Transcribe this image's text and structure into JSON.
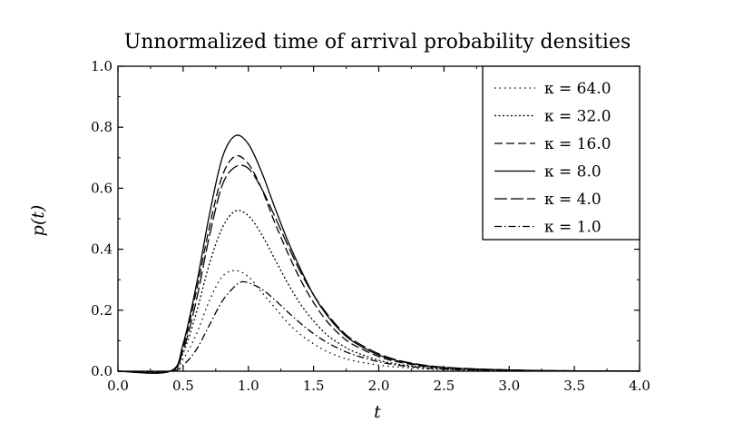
{
  "chart_data": {
    "type": "line",
    "title": "Unnormalized time of arrival probability densities",
    "xlabel": "t",
    "ylabel": "p(t)",
    "xlim": [
      0.0,
      4.0
    ],
    "ylim": [
      0.0,
      1.0
    ],
    "x_ticks": [
      "0.0",
      "0.5",
      "1.0",
      "1.5",
      "2.0",
      "2.5",
      "3.0",
      "3.5",
      "4.0"
    ],
    "y_ticks": [
      "0.0",
      "0.2",
      "0.4",
      "0.6",
      "0.8",
      "1.0"
    ],
    "grid": false,
    "legend_position": "top-right",
    "series": [
      {
        "name": "κ = 64.0",
        "legend": "κ = 64.0",
        "dash": "1.5,4",
        "points": [
          [
            0.0,
            0
          ],
          [
            0.4,
            0.0
          ],
          [
            0.5,
            0.04
          ],
          [
            0.6,
            0.12
          ],
          [
            0.7,
            0.23
          ],
          [
            0.8,
            0.31
          ],
          [
            0.9,
            0.33
          ],
          [
            1.0,
            0.31
          ],
          [
            1.1,
            0.26
          ],
          [
            1.2,
            0.21
          ],
          [
            1.3,
            0.16
          ],
          [
            1.4,
            0.12
          ],
          [
            1.5,
            0.09
          ],
          [
            1.6,
            0.065
          ],
          [
            1.7,
            0.048
          ],
          [
            1.8,
            0.035
          ],
          [
            2.0,
            0.02
          ],
          [
            2.2,
            0.012
          ],
          [
            2.5,
            0.005
          ],
          [
            3.0,
            0.0015
          ],
          [
            3.5,
            0.0005
          ],
          [
            4.0,
            0.0002
          ]
        ]
      },
      {
        "name": "κ = 32.0",
        "legend": "κ = 32.0",
        "dash": "2,2.5",
        "points": [
          [
            0.0,
            0
          ],
          [
            0.4,
            0.0
          ],
          [
            0.5,
            0.06
          ],
          [
            0.6,
            0.19
          ],
          [
            0.7,
            0.35
          ],
          [
            0.8,
            0.47
          ],
          [
            0.9,
            0.525
          ],
          [
            1.0,
            0.51
          ],
          [
            1.1,
            0.45
          ],
          [
            1.2,
            0.37
          ],
          [
            1.3,
            0.29
          ],
          [
            1.4,
            0.22
          ],
          [
            1.5,
            0.165
          ],
          [
            1.6,
            0.12
          ],
          [
            1.7,
            0.09
          ],
          [
            1.8,
            0.066
          ],
          [
            2.0,
            0.036
          ],
          [
            2.2,
            0.02
          ],
          [
            2.5,
            0.008
          ],
          [
            3.0,
            0.0025
          ],
          [
            3.5,
            0.0008
          ],
          [
            4.0,
            0.0003
          ]
        ]
      },
      {
        "name": "κ = 16.0",
        "legend": "κ = 16.0",
        "dash": "9,4",
        "points": [
          [
            0.0,
            0
          ],
          [
            0.4,
            0.0
          ],
          [
            0.5,
            0.08
          ],
          [
            0.6,
            0.26
          ],
          [
            0.7,
            0.47
          ],
          [
            0.8,
            0.64
          ],
          [
            0.9,
            0.705
          ],
          [
            1.0,
            0.68
          ],
          [
            1.1,
            0.6
          ],
          [
            1.2,
            0.49
          ],
          [
            1.3,
            0.39
          ],
          [
            1.4,
            0.3
          ],
          [
            1.5,
            0.225
          ],
          [
            1.6,
            0.165
          ],
          [
            1.7,
            0.12
          ],
          [
            1.8,
            0.088
          ],
          [
            2.0,
            0.048
          ],
          [
            2.2,
            0.026
          ],
          [
            2.5,
            0.011
          ],
          [
            3.0,
            0.0035
          ],
          [
            3.5,
            0.001
          ],
          [
            4.0,
            0.0004
          ]
        ]
      },
      {
        "name": "κ = 8.0",
        "legend": "κ = 8.0",
        "dash": "none",
        "points": [
          [
            0.0,
            0
          ],
          [
            0.4,
            0.0
          ],
          [
            0.5,
            0.09
          ],
          [
            0.6,
            0.28
          ],
          [
            0.7,
            0.51
          ],
          [
            0.8,
            0.7
          ],
          [
            0.9,
            0.772
          ],
          [
            1.0,
            0.745
          ],
          [
            1.1,
            0.655
          ],
          [
            1.2,
            0.54
          ],
          [
            1.3,
            0.43
          ],
          [
            1.4,
            0.335
          ],
          [
            1.5,
            0.25
          ],
          [
            1.6,
            0.185
          ],
          [
            1.7,
            0.135
          ],
          [
            1.8,
            0.098
          ],
          [
            2.0,
            0.053
          ],
          [
            2.2,
            0.029
          ],
          [
            2.5,
            0.012
          ],
          [
            3.0,
            0.004
          ],
          [
            3.5,
            0.0012
          ],
          [
            4.0,
            0.0004
          ]
        ]
      },
      {
        "name": "κ = 4.0",
        "legend": "κ = 4.0",
        "dash": "14,4",
        "points": [
          [
            0.0,
            0
          ],
          [
            0.4,
            0.0
          ],
          [
            0.5,
            0.07
          ],
          [
            0.6,
            0.23
          ],
          [
            0.7,
            0.44
          ],
          [
            0.8,
            0.61
          ],
          [
            0.9,
            0.67
          ],
          [
            1.0,
            0.665
          ],
          [
            1.1,
            0.6
          ],
          [
            1.2,
            0.51
          ],
          [
            1.3,
            0.415
          ],
          [
            1.4,
            0.325
          ],
          [
            1.5,
            0.25
          ],
          [
            1.6,
            0.19
          ],
          [
            1.7,
            0.14
          ],
          [
            1.8,
            0.103
          ],
          [
            2.0,
            0.057
          ],
          [
            2.2,
            0.031
          ],
          [
            2.5,
            0.013
          ],
          [
            3.0,
            0.0042
          ],
          [
            3.5,
            0.0013
          ],
          [
            4.0,
            0.0004
          ]
        ]
      },
      {
        "name": "κ = 1.0",
        "legend": "κ = 1.0",
        "dash": "8,3,1.5,3",
        "points": [
          [
            0.0,
            0
          ],
          [
            0.4,
            0.0
          ],
          [
            0.5,
            0.02
          ],
          [
            0.6,
            0.07
          ],
          [
            0.7,
            0.15
          ],
          [
            0.8,
            0.23
          ],
          [
            0.9,
            0.28
          ],
          [
            0.95,
            0.293
          ],
          [
            1.0,
            0.29
          ],
          [
            1.1,
            0.27
          ],
          [
            1.2,
            0.235
          ],
          [
            1.3,
            0.195
          ],
          [
            1.4,
            0.157
          ],
          [
            1.5,
            0.123
          ],
          [
            1.6,
            0.095
          ],
          [
            1.7,
            0.073
          ],
          [
            1.8,
            0.055
          ],
          [
            2.0,
            0.031
          ],
          [
            2.2,
            0.017
          ],
          [
            2.5,
            0.007
          ],
          [
            3.0,
            0.0022
          ],
          [
            3.5,
            0.0007
          ],
          [
            4.0,
            0.0002
          ]
        ]
      }
    ]
  }
}
